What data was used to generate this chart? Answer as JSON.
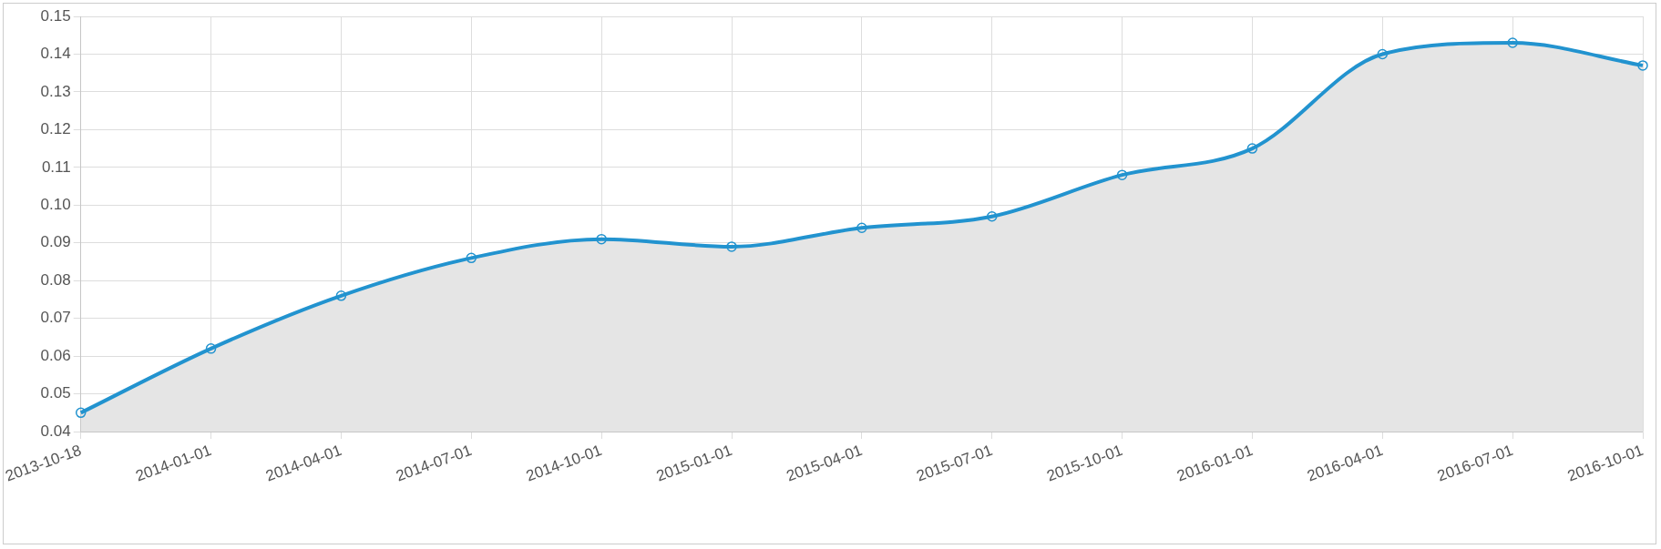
{
  "chart_data": {
    "type": "area",
    "categories": [
      "2013-10-18",
      "2014-01-01",
      "2014-04-01",
      "2014-07-01",
      "2014-10-01",
      "2015-01-01",
      "2015-04-01",
      "2015-07-01",
      "2015-10-01",
      "2016-01-01",
      "2016-04-01",
      "2016-07-01",
      "2016-10-01"
    ],
    "series": [
      {
        "color": "#2293cf",
        "values": [
          0.045,
          0.062,
          0.076,
          0.086,
          0.091,
          0.089,
          0.094,
          0.097,
          0.108,
          0.115,
          0.14,
          0.143,
          0.137
        ]
      }
    ],
    "ylim": [
      0.04,
      0.15
    ],
    "yticks": [
      0.04,
      0.05,
      0.06,
      0.07,
      0.08,
      0.09,
      {
        "value": 0.1,
        "label": "0.10"
      },
      0.11,
      0.12,
      0.13,
      0.14,
      0.15
    ],
    "grid": true,
    "legend": false,
    "marker": "circle",
    "line_style": "solid"
  }
}
